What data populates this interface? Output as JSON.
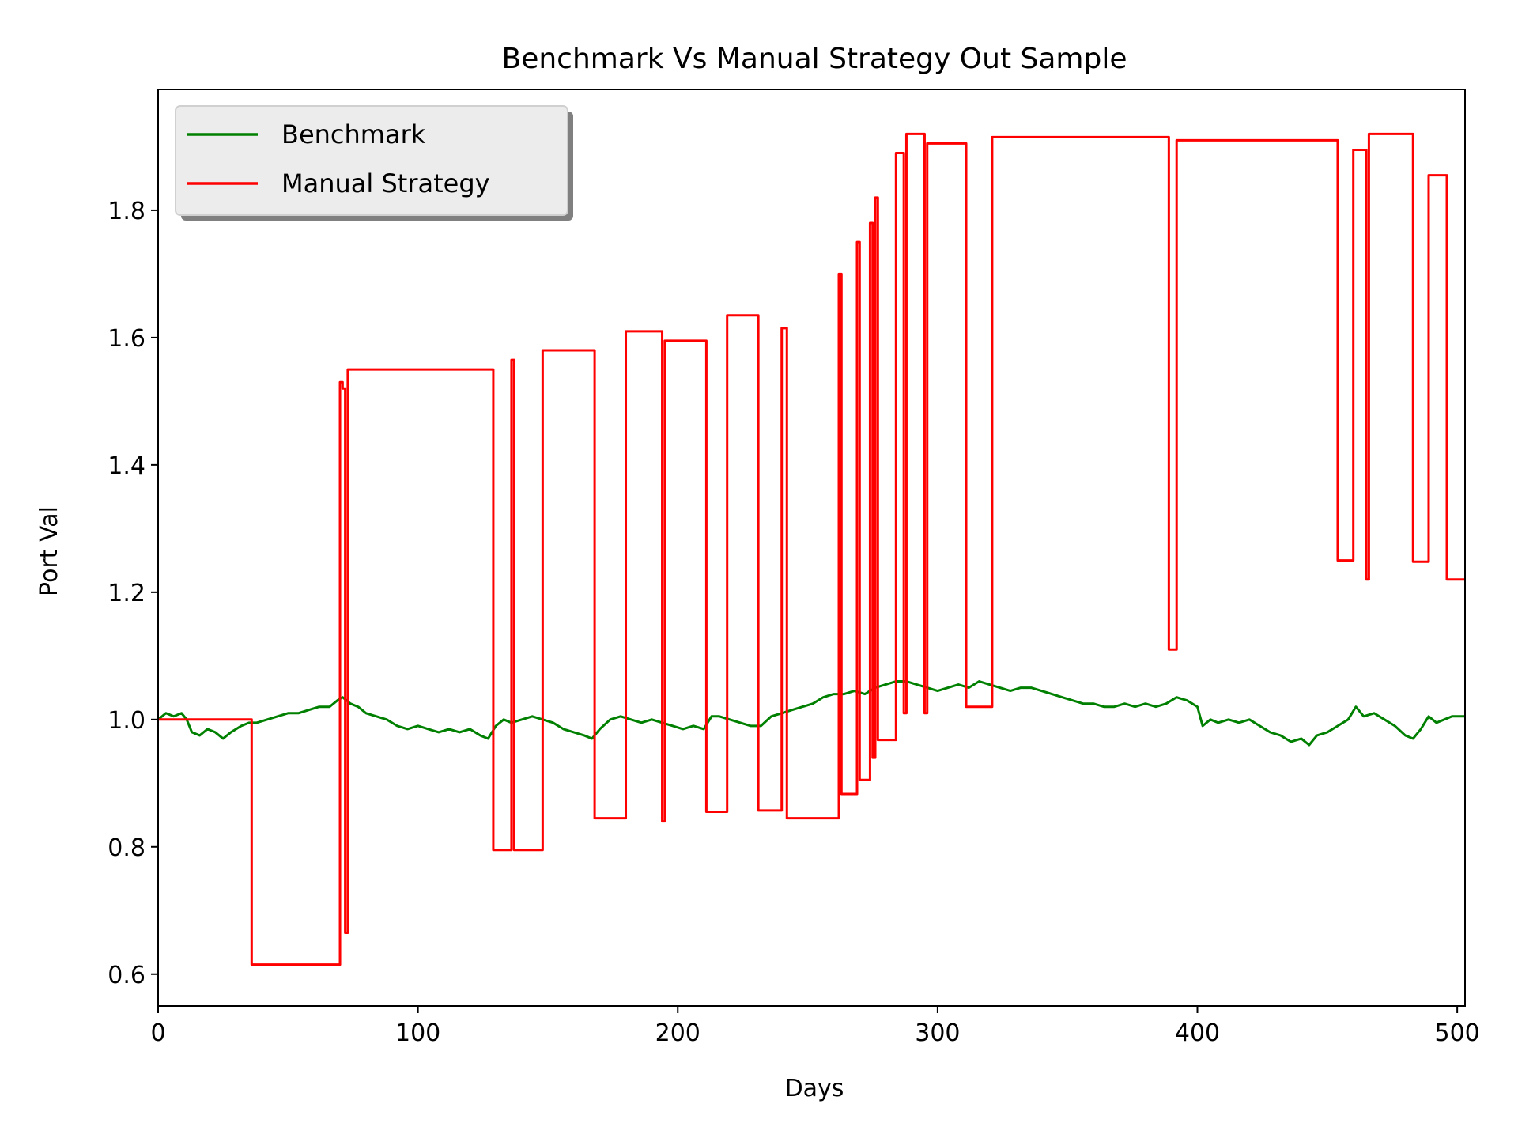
{
  "chart_data": {
    "type": "line",
    "title": "Benchmark Vs Manual Strategy Out Sample",
    "xlabel": "Days",
    "ylabel": "Port Val",
    "xlim": [
      0,
      503
    ],
    "ylim": [
      0.55,
      1.99
    ],
    "xticks": [
      0,
      100,
      200,
      300,
      400,
      500
    ],
    "yticks": [
      0.6,
      0.8,
      1.0,
      1.2,
      1.4,
      1.6,
      1.8
    ],
    "xtick_labels": [
      "0",
      "100",
      "200",
      "300",
      "400",
      "500"
    ],
    "ytick_labels": [
      "0.6",
      "0.8",
      "1.0",
      "1.2",
      "1.4",
      "1.6",
      "1.8"
    ],
    "grid": false,
    "legend_position": "upper-left",
    "series": [
      {
        "name": "Benchmark",
        "color": "#008000",
        "style": "line",
        "points": [
          [
            0,
            1.0
          ],
          [
            3,
            1.01
          ],
          [
            6,
            1.005
          ],
          [
            9,
            1.01
          ],
          [
            11,
            1.0
          ],
          [
            13,
            0.98
          ],
          [
            16,
            0.975
          ],
          [
            19,
            0.985
          ],
          [
            22,
            0.98
          ],
          [
            25,
            0.97
          ],
          [
            28,
            0.98
          ],
          [
            32,
            0.99
          ],
          [
            35,
            0.995
          ],
          [
            38,
            0.995
          ],
          [
            42,
            1.0
          ],
          [
            46,
            1.005
          ],
          [
            50,
            1.01
          ],
          [
            54,
            1.01
          ],
          [
            58,
            1.015
          ],
          [
            62,
            1.02
          ],
          [
            66,
            1.02
          ],
          [
            69,
            1.03
          ],
          [
            71,
            1.035
          ],
          [
            74,
            1.025
          ],
          [
            77,
            1.02
          ],
          [
            80,
            1.01
          ],
          [
            84,
            1.005
          ],
          [
            88,
            1.0
          ],
          [
            92,
            0.99
          ],
          [
            96,
            0.985
          ],
          [
            100,
            0.99
          ],
          [
            104,
            0.985
          ],
          [
            108,
            0.98
          ],
          [
            112,
            0.985
          ],
          [
            116,
            0.98
          ],
          [
            120,
            0.985
          ],
          [
            124,
            0.975
          ],
          [
            127,
            0.97
          ],
          [
            130,
            0.99
          ],
          [
            133,
            1.0
          ],
          [
            136,
            0.995
          ],
          [
            140,
            1.0
          ],
          [
            144,
            1.005
          ],
          [
            148,
            1.0
          ],
          [
            152,
            0.995
          ],
          [
            156,
            0.985
          ],
          [
            160,
            0.98
          ],
          [
            164,
            0.975
          ],
          [
            167,
            0.97
          ],
          [
            170,
            0.985
          ],
          [
            174,
            1.0
          ],
          [
            178,
            1.005
          ],
          [
            182,
            1.0
          ],
          [
            186,
            0.995
          ],
          [
            190,
            1.0
          ],
          [
            194,
            0.995
          ],
          [
            198,
            0.99
          ],
          [
            202,
            0.985
          ],
          [
            206,
            0.99
          ],
          [
            210,
            0.985
          ],
          [
            213,
            1.005
          ],
          [
            216,
            1.005
          ],
          [
            220,
            1.0
          ],
          [
            224,
            0.995
          ],
          [
            228,
            0.99
          ],
          [
            232,
            0.99
          ],
          [
            236,
            1.005
          ],
          [
            240,
            1.01
          ],
          [
            244,
            1.015
          ],
          [
            248,
            1.02
          ],
          [
            252,
            1.025
          ],
          [
            256,
            1.035
          ],
          [
            260,
            1.04
          ],
          [
            264,
            1.04
          ],
          [
            268,
            1.045
          ],
          [
            272,
            1.04
          ],
          [
            276,
            1.05
          ],
          [
            280,
            1.055
          ],
          [
            284,
            1.06
          ],
          [
            288,
            1.06
          ],
          [
            292,
            1.055
          ],
          [
            296,
            1.05
          ],
          [
            300,
            1.045
          ],
          [
            304,
            1.05
          ],
          [
            308,
            1.055
          ],
          [
            312,
            1.05
          ],
          [
            316,
            1.06
          ],
          [
            320,
            1.055
          ],
          [
            324,
            1.05
          ],
          [
            328,
            1.045
          ],
          [
            332,
            1.05
          ],
          [
            336,
            1.05
          ],
          [
            340,
            1.045
          ],
          [
            344,
            1.04
          ],
          [
            348,
            1.035
          ],
          [
            352,
            1.03
          ],
          [
            356,
            1.025
          ],
          [
            360,
            1.025
          ],
          [
            364,
            1.02
          ],
          [
            368,
            1.02
          ],
          [
            372,
            1.025
          ],
          [
            376,
            1.02
          ],
          [
            380,
            1.025
          ],
          [
            384,
            1.02
          ],
          [
            388,
            1.025
          ],
          [
            392,
            1.035
          ],
          [
            396,
            1.03
          ],
          [
            400,
            1.02
          ],
          [
            402,
            0.99
          ],
          [
            405,
            1.0
          ],
          [
            408,
            0.995
          ],
          [
            412,
            1.0
          ],
          [
            416,
            0.995
          ],
          [
            420,
            1.0
          ],
          [
            424,
            0.99
          ],
          [
            428,
            0.98
          ],
          [
            432,
            0.975
          ],
          [
            436,
            0.965
          ],
          [
            440,
            0.97
          ],
          [
            443,
            0.96
          ],
          [
            446,
            0.975
          ],
          [
            450,
            0.98
          ],
          [
            454,
            0.99
          ],
          [
            458,
            1.0
          ],
          [
            461,
            1.02
          ],
          [
            464,
            1.005
          ],
          [
            468,
            1.01
          ],
          [
            472,
            1.0
          ],
          [
            476,
            0.99
          ],
          [
            480,
            0.975
          ],
          [
            483,
            0.97
          ],
          [
            486,
            0.985
          ],
          [
            489,
            1.005
          ],
          [
            492,
            0.995
          ],
          [
            495,
            1.0
          ],
          [
            498,
            1.005
          ],
          [
            501,
            1.005
          ],
          [
            503,
            1.005
          ]
        ]
      },
      {
        "name": "Manual Strategy",
        "color": "#ff0000",
        "style": "step",
        "points": [
          [
            0,
            1.0
          ],
          [
            35,
            1.0
          ],
          [
            36,
            0.615
          ],
          [
            69,
            0.615
          ],
          [
            70,
            1.53
          ],
          [
            71,
            1.52
          ],
          [
            72,
            0.665
          ],
          [
            73,
            1.55
          ],
          [
            128,
            1.55
          ],
          [
            129,
            0.795
          ],
          [
            135,
            0.795
          ],
          [
            136,
            1.565
          ],
          [
            137,
            0.795
          ],
          [
            147,
            0.795
          ],
          [
            148,
            1.58
          ],
          [
            167,
            1.58
          ],
          [
            168,
            0.845
          ],
          [
            179,
            0.845
          ],
          [
            180,
            1.61
          ],
          [
            193,
            1.61
          ],
          [
            194,
            0.84
          ],
          [
            195,
            1.595
          ],
          [
            210,
            1.595
          ],
          [
            211,
            0.855
          ],
          [
            218,
            0.855
          ],
          [
            219,
            1.635
          ],
          [
            230,
            1.635
          ],
          [
            231,
            0.857
          ],
          [
            239,
            0.857
          ],
          [
            240,
            1.615
          ],
          [
            241,
            1.615
          ],
          [
            242,
            0.845
          ],
          [
            261,
            0.845
          ],
          [
            262,
            1.7
          ],
          [
            263,
            0.883
          ],
          [
            268,
            0.883
          ],
          [
            269,
            1.75
          ],
          [
            270,
            0.905
          ],
          [
            273,
            0.905
          ],
          [
            274,
            1.78
          ],
          [
            275,
            0.94
          ],
          [
            276,
            1.82
          ],
          [
            277,
            0.968
          ],
          [
            283,
            0.968
          ],
          [
            284,
            1.89
          ],
          [
            286,
            1.89
          ],
          [
            287,
            1.01
          ],
          [
            288,
            1.92
          ],
          [
            294,
            1.92
          ],
          [
            295,
            1.01
          ],
          [
            296,
            1.905
          ],
          [
            310,
            1.905
          ],
          [
            311,
            1.02
          ],
          [
            320,
            1.02
          ],
          [
            321,
            1.915
          ],
          [
            388,
            1.915
          ],
          [
            389,
            1.11
          ],
          [
            391,
            1.11
          ],
          [
            392,
            1.91
          ],
          [
            453,
            1.91
          ],
          [
            454,
            1.25
          ],
          [
            459,
            1.25
          ],
          [
            460,
            1.895
          ],
          [
            464,
            1.895
          ],
          [
            465,
            1.22
          ],
          [
            466,
            1.92
          ],
          [
            482,
            1.92
          ],
          [
            483,
            1.248
          ],
          [
            488,
            1.248
          ],
          [
            489,
            1.855
          ],
          [
            495,
            1.855
          ],
          [
            496,
            1.22
          ],
          [
            503,
            1.22
          ]
        ]
      }
    ]
  }
}
